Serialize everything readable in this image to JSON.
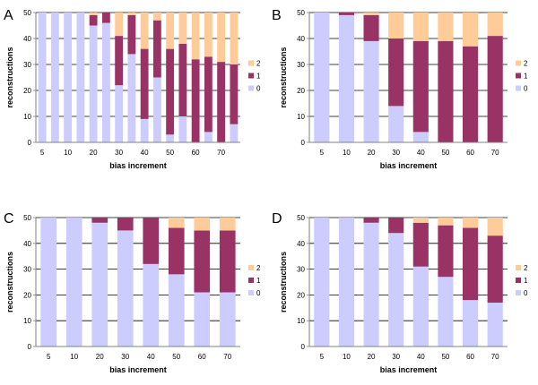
{
  "colors": {
    "0": "#ccccff",
    "1": "#993366",
    "2": "#ffcc99",
    "grid": "#000000",
    "axis": "#808080"
  },
  "chart_data": [
    {
      "panel": "A",
      "type": "bar",
      "stacked": true,
      "title": "",
      "xlabel": "bias increment",
      "ylabel": "reconstructions",
      "ylim": [
        0,
        50
      ],
      "yticks": [
        0,
        10,
        20,
        30,
        40,
        50
      ],
      "grid": true,
      "legend": [
        "2",
        "1",
        "0"
      ],
      "legend_position": "right",
      "categories": [
        "5",
        "",
        "10",
        "",
        "20",
        "",
        "30",
        "",
        "40",
        "",
        "50",
        "",
        "60",
        "",
        "70",
        ""
      ],
      "series": [
        {
          "name": "0",
          "values": [
            50,
            50,
            50,
            50,
            45,
            46,
            22,
            34,
            9,
            25,
            3,
            10,
            0,
            4,
            0,
            7
          ]
        },
        {
          "name": "1",
          "values": [
            0,
            0,
            0,
            0,
            4,
            4,
            19,
            15,
            27,
            22,
            33,
            28,
            32,
            29,
            31,
            23
          ]
        },
        {
          "name": "2",
          "values": [
            0,
            0,
            0,
            0,
            1,
            0,
            9,
            1,
            14,
            3,
            14,
            12,
            18,
            17,
            19,
            20
          ]
        }
      ]
    },
    {
      "panel": "B",
      "type": "bar",
      "stacked": true,
      "title": "",
      "xlabel": "bias increment",
      "ylabel": "reconstructions",
      "ylim": [
        0,
        50
      ],
      "yticks": [
        0,
        10,
        20,
        30,
        40,
        50
      ],
      "grid": true,
      "legend": [
        "2",
        "1",
        "0"
      ],
      "legend_position": "right",
      "categories": [
        "5",
        "10",
        "20",
        "30",
        "40",
        "50",
        "60",
        "70"
      ],
      "series": [
        {
          "name": "0",
          "values": [
            50,
            49,
            39,
            14,
            4,
            0,
            0,
            0
          ]
        },
        {
          "name": "1",
          "values": [
            0,
            1,
            10,
            26,
            35,
            39,
            37,
            41
          ]
        },
        {
          "name": "2",
          "values": [
            0,
            0,
            1,
            10,
            11,
            11,
            13,
            9
          ]
        }
      ]
    },
    {
      "panel": "C",
      "type": "bar",
      "stacked": true,
      "title": "",
      "xlabel": "bias increment",
      "ylabel": "reconstructions",
      "ylim": [
        0,
        50
      ],
      "yticks": [
        0,
        10,
        20,
        30,
        40,
        50
      ],
      "grid": true,
      "legend": [
        "2",
        "1",
        "0"
      ],
      "legend_position": "right",
      "categories": [
        "5",
        "10",
        "20",
        "30",
        "40",
        "50",
        "60",
        "70"
      ],
      "series": [
        {
          "name": "0",
          "values": [
            50,
            50,
            48,
            45,
            32,
            28,
            21,
            21
          ]
        },
        {
          "name": "1",
          "values": [
            0,
            0,
            2,
            5,
            18,
            18,
            24,
            24
          ]
        },
        {
          "name": "2",
          "values": [
            0,
            0,
            0,
            0,
            0,
            4,
            5,
            5
          ]
        }
      ]
    },
    {
      "panel": "D",
      "type": "bar",
      "stacked": true,
      "title": "",
      "xlabel": "bias increment",
      "ylabel": "reconstructions",
      "ylim": [
        0,
        50
      ],
      "yticks": [
        0,
        10,
        20,
        30,
        40,
        50
      ],
      "grid": true,
      "legend": [
        "2",
        "1",
        "0"
      ],
      "legend_position": "right",
      "categories": [
        "5",
        "10",
        "20",
        "30",
        "40",
        "50",
        "60",
        "70"
      ],
      "series": [
        {
          "name": "0",
          "values": [
            50,
            50,
            48,
            44,
            31,
            27,
            18,
            17
          ]
        },
        {
          "name": "1",
          "values": [
            0,
            0,
            2,
            6,
            17,
            20,
            28,
            26
          ]
        },
        {
          "name": "2",
          "values": [
            0,
            0,
            0,
            0,
            2,
            3,
            4,
            7
          ]
        }
      ]
    }
  ]
}
